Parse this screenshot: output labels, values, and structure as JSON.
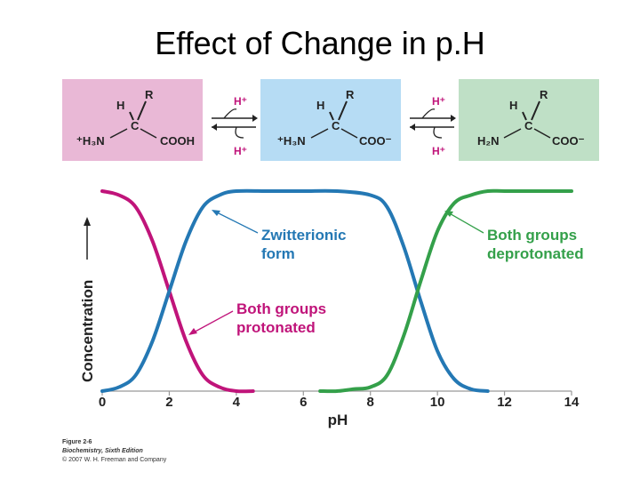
{
  "title": "Effect of Change in p.H",
  "species": [
    {
      "H": "H",
      "R": "R",
      "C": "C",
      "amine": "⁺H₃N",
      "acid": "COOH",
      "bg": "#e9b8d6"
    },
    {
      "H": "H",
      "R": "R",
      "C": "C",
      "amine": "⁺H₃N",
      "acid": "COO⁻",
      "bg": "#b6dcf4"
    },
    {
      "H": "H",
      "R": "R",
      "C": "C",
      "amine": "H₂N",
      "acid": "COO⁻",
      "bg": "#bfe0c6"
    }
  ],
  "equilibrium_labels": {
    "top": "H⁺",
    "bottom": "H⁺"
  },
  "chart_data": {
    "type": "line",
    "title": "",
    "xlabel": "pH",
    "ylabel": "Concentration",
    "xlim": [
      0,
      14
    ],
    "ylim": [
      0,
      1
    ],
    "xticks": [
      0,
      2,
      4,
      6,
      8,
      10,
      12,
      14
    ],
    "series": [
      {
        "name": "Both groups protonated",
        "color": "#c0147a",
        "x": [
          0,
          0.5,
          1,
          1.5,
          2,
          2.5,
          3,
          3.5,
          4,
          4.5
        ],
        "y": [
          1.0,
          0.98,
          0.92,
          0.75,
          0.5,
          0.25,
          0.08,
          0.02,
          0.0,
          0.0
        ]
      },
      {
        "name": "Zwitterionic form",
        "color": "#2478b4",
        "x": [
          0,
          0.5,
          1,
          1.5,
          2,
          2.5,
          3,
          3.5,
          4,
          5,
          6,
          7,
          8,
          8.5,
          9,
          9.5,
          10,
          10.5,
          11,
          11.5
        ],
        "y": [
          0.0,
          0.02,
          0.08,
          0.25,
          0.5,
          0.75,
          0.92,
          0.98,
          1.0,
          1.0,
          1.0,
          1.0,
          0.98,
          0.92,
          0.72,
          0.45,
          0.2,
          0.06,
          0.01,
          0.0
        ]
      },
      {
        "name": "Both groups deprotonated",
        "color": "#34a04a",
        "x": [
          6.5,
          7,
          7.5,
          8,
          8.5,
          9,
          9.5,
          10,
          10.5,
          11,
          11.5,
          12,
          13,
          14
        ],
        "y": [
          0.0,
          0.0,
          0.01,
          0.02,
          0.08,
          0.28,
          0.55,
          0.8,
          0.94,
          0.98,
          1.0,
          1.0,
          1.0,
          1.0
        ]
      }
    ],
    "annotations": [
      {
        "lines": [
          "Zwitterionic",
          "form"
        ],
        "color": "#2478b4"
      },
      {
        "lines": [
          "Both groups",
          "deprotonated"
        ],
        "color": "#34a04a"
      },
      {
        "lines": [
          "Both groups",
          "protonated"
        ],
        "color": "#c0147a"
      }
    ]
  },
  "caption": {
    "figure": "Figure 2-6",
    "book": "Biochemistry, Sixth Edition",
    "copyright": "© 2007 W. H. Freeman and Company"
  }
}
